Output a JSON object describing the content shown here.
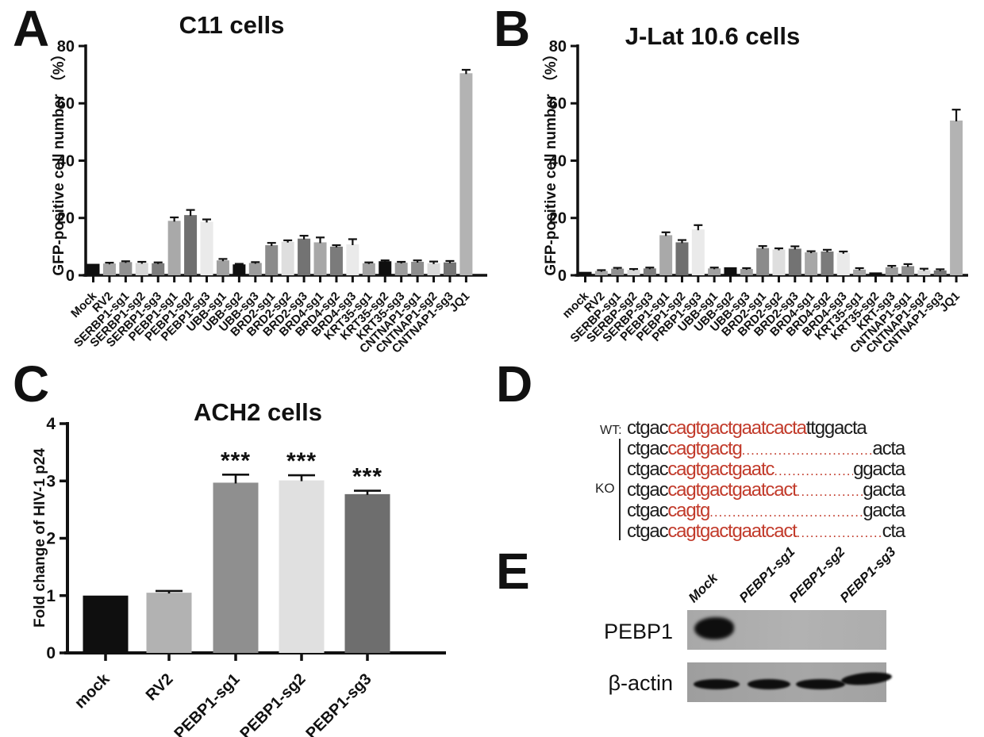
{
  "panel_letters": {
    "a": "A",
    "b": "B",
    "c": "C",
    "d": "D",
    "e": "E"
  },
  "chart_data": [
    {
      "id": "chartA",
      "type": "bar",
      "title": "C11 cells",
      "xlabel": "",
      "ylabel": "GFP-positive cell number （%）",
      "ylim": [
        0,
        80
      ],
      "yticks": [
        0,
        20,
        40,
        60,
        80
      ],
      "grid": false,
      "legend": "none",
      "categories": [
        "Mock",
        "RV2",
        "SERBP1-sg1",
        "SERBP1-sg2",
        "SERBP1-sg3",
        "PEBP1-sg1",
        "PEBP1-sg2",
        "PEBP1-sg3",
        "UBB-sg1",
        "UBB-sg2",
        "UBB-sg3",
        "BRD2-sg1",
        "BRD2-sg2",
        "BRD2-sg3",
        "BRD4-sg1",
        "BRD4-sg2",
        "BRD4-sg3",
        "KRT35-sg1",
        "KRT35-sg2",
        "KRT35-sg3",
        "CNTNAP1-sg1",
        "CNTNAP1-sg2",
        "CNTNAP1-sg3",
        "JQ1"
      ],
      "values": [
        4.0,
        4.1,
        4.6,
        4.3,
        4.2,
        19.0,
        21.0,
        18.7,
        5.2,
        3.8,
        4.3,
        10.5,
        11.7,
        12.8,
        11.5,
        10.0,
        10.8,
        4.2,
        4.9,
        4.4,
        4.7,
        4.2,
        4.5,
        70.5
      ],
      "errors": [
        0,
        0.3,
        0.3,
        0.4,
        0.3,
        1.2,
        1.8,
        0.8,
        0.5,
        0.2,
        0.3,
        0.8,
        0.5,
        1.0,
        1.7,
        0.5,
        1.8,
        0.3,
        0.3,
        0.3,
        0.5,
        0.6,
        0.5,
        1.2
      ],
      "bar_colors": [
        "#0f0f0f",
        "#a7a7a7",
        "#909090",
        "#d7d7d7",
        "#7c7c7c",
        "#a9a9a9",
        "#6f6f6f",
        "#eaeaea",
        "#a0a0a0",
        "#0f0f0f",
        "#9c9c9c",
        "#8b8b8b",
        "#dedede",
        "#737373",
        "#a7a7a7",
        "#7b7b7b",
        "#eaeaea",
        "#a3a3a3",
        "#0f0f0f",
        "#9c9c9c",
        "#8d8d8d",
        "#dadada",
        "#757575",
        "#b3b3b3"
      ]
    },
    {
      "id": "chartB",
      "type": "bar",
      "title": "J-Lat 10.6 cells",
      "xlabel": "",
      "ylabel": "GFP-positive cell number （%）",
      "ylim": [
        0,
        80
      ],
      "yticks": [
        0,
        20,
        40,
        60,
        80
      ],
      "grid": false,
      "legend": "none",
      "categories": [
        "mock",
        "RV2",
        "SERBP-sg1",
        "SERBP-sg2",
        "SERBP-sg3",
        "PEBP1-sg1",
        "PEBP1-sg2",
        "PRBP1-sg3",
        "UBB-sg1",
        "UBB-sg2",
        "UBB-sg3",
        "BRD2-sg1",
        "BRD2-sg2",
        "BRD2-sg3",
        "BRD4-sg1",
        "BRD4-sg2",
        "BRD4-sg3",
        "KRT35-sg1",
        "KRT35-sg2",
        "KRT-sg3",
        "CNTNAP1-sg1",
        "CNTNAP1-sg2",
        "CNTNAP1-sg3",
        "JQ1"
      ],
      "values": [
        1.2,
        1.5,
        2.3,
        1.9,
        2.4,
        14.0,
        11.5,
        16.0,
        2.4,
        2.8,
        2.2,
        9.5,
        9.0,
        9.3,
        8.0,
        8.3,
        7.8,
        2.0,
        1.0,
        2.8,
        3.2,
        1.8,
        1.7,
        54.0
      ],
      "errors": [
        0,
        0.3,
        0.3,
        0.3,
        0.3,
        1.0,
        0.8,
        1.5,
        0.3,
        0,
        0.3,
        0.7,
        0.4,
        0.8,
        0.4,
        0.6,
        0.5,
        0.5,
        0,
        0.5,
        0.7,
        0.5,
        0.4,
        3.8
      ],
      "bar_colors": [
        "#0f0f0f",
        "#a7a7a7",
        "#909090",
        "#d7d7d7",
        "#7c7c7c",
        "#a9a9a9",
        "#6f6f6f",
        "#eaeaea",
        "#a0a0a0",
        "#0f0f0f",
        "#9c9c9c",
        "#8b8b8b",
        "#dedede",
        "#737373",
        "#a7a7a7",
        "#7b7b7b",
        "#eaeaea",
        "#a3a3a3",
        "#0f0f0f",
        "#9c9c9c",
        "#8d8d8d",
        "#dadada",
        "#757575",
        "#b3b3b3"
      ]
    },
    {
      "id": "chartC",
      "type": "bar",
      "title": "ACH2 cells",
      "xlabel": "",
      "ylabel": "Fold change of HIV-1 p24",
      "ylim": [
        0,
        4
      ],
      "yticks": [
        0,
        1,
        2,
        3,
        4
      ],
      "grid": false,
      "legend": "none",
      "categories": [
        "mock",
        "RV2",
        "PEBP1-sg1",
        "PEBP1-sg2",
        "PEBP1-sg3"
      ],
      "values": [
        1.0,
        1.05,
        2.97,
        3.01,
        2.77
      ],
      "errors": [
        0,
        0.03,
        0.14,
        0.09,
        0.06
      ],
      "annotations": [
        "",
        "",
        "***",
        "***",
        "***"
      ],
      "bar_colors": [
        "#0f0f0f",
        "#b2b2b2",
        "#8f8f8f",
        "#e0e0e0",
        "#6e6e6e"
      ]
    }
  ],
  "sequence_panel": {
    "wt_label": "WT:",
    "ko_label": "KO",
    "highlight_color": "#c23b2b",
    "rows": [
      {
        "group": "WT",
        "pre": "ctgac",
        "match": "cagtgactgaatcacta",
        "leader": false,
        "tail": "ttggacta"
      },
      {
        "group": "KO",
        "pre": "ctgac",
        "match": "cagtgactg",
        "leader": true,
        "tail": "acta"
      },
      {
        "group": "KO",
        "pre": "ctgac",
        "match": "cagtgactgaatc",
        "leader": true,
        "tail": "ggacta"
      },
      {
        "group": "KO",
        "pre": "ctgac",
        "match": "cagtgactgaatcact",
        "leader": true,
        "tail": "gacta"
      },
      {
        "group": "KO",
        "pre": "ctgac",
        "match": "cagtg",
        "leader": true,
        "tail": "gacta"
      },
      {
        "group": "KO",
        "pre": "ctgac",
        "match": "cagtgactgaatcact",
        "leader": true,
        "tail": "cta"
      }
    ]
  },
  "blot_panel": {
    "lane_labels": [
      "Mock",
      "PEBP1-sg1",
      "PEBP1-sg2",
      "PEBP1-sg3"
    ],
    "rows": [
      {
        "label": "PEBP1",
        "bands": [
          1,
          0,
          0,
          0
        ]
      },
      {
        "label": "β-actin",
        "bands": [
          1,
          1,
          1,
          1
        ]
      }
    ]
  }
}
